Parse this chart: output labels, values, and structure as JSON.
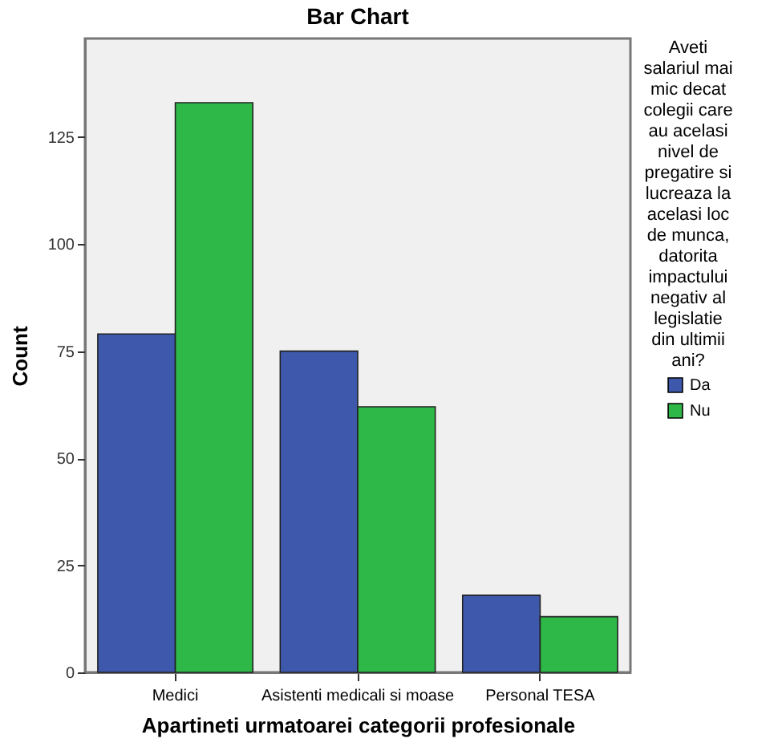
{
  "chart_data": {
    "type": "bar",
    "title": "Bar Chart",
    "xlabel": "Apartineti urmatoarei categorii profesionale",
    "ylabel": "Count",
    "legend_title": "Aveti salariul mai mic decat colegii care au acelasi nivel de pregatire si lucreaza la acelasi loc de munca, datorita impactului negativ al legislatie din ultimii ani?",
    "categories": [
      "Medici",
      "Asistenti medicali si moase",
      "Personal TESA"
    ],
    "series": [
      {
        "name": "Da",
        "color": "#3e58ac",
        "values": [
          79,
          75,
          18
        ]
      },
      {
        "name": "Nu",
        "color": "#2eb848",
        "values": [
          133,
          62,
          13
        ]
      }
    ],
    "ylim": [
      0,
      148
    ],
    "yticks": [
      0,
      25,
      50,
      75,
      100,
      125
    ],
    "grid": false,
    "legend": "right"
  }
}
